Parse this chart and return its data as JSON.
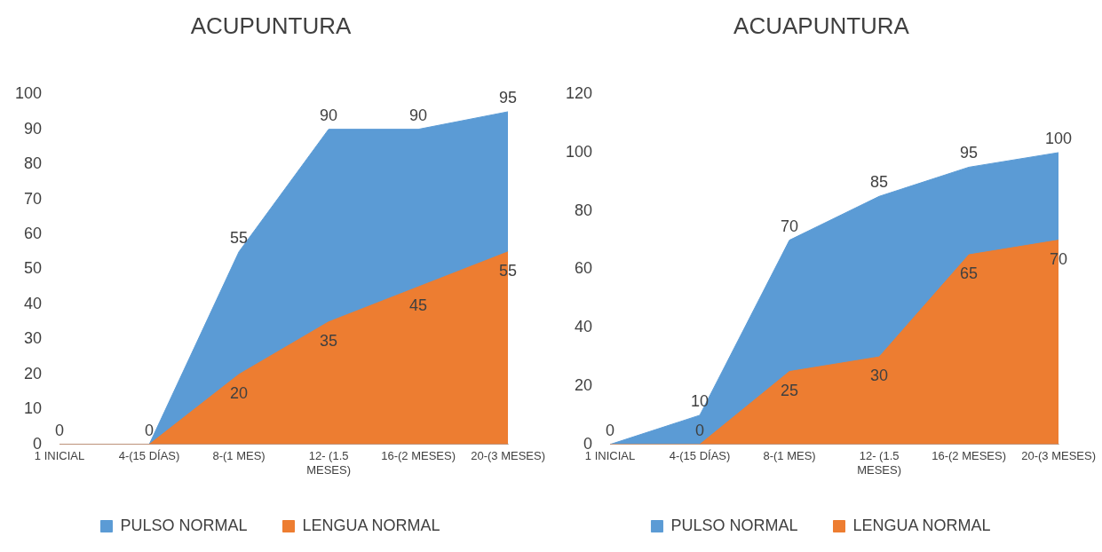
{
  "chart_data": [
    {
      "type": "area",
      "title": "ACUPUNTURA",
      "categories": [
        "1 INICIAL",
        "4-(15 DÍAS)",
        "8-(1 MES)",
        "12- (1.5 MESES)",
        "16-(2 MESES)",
        "20-(3 MESES)"
      ],
      "series": [
        {
          "name": "PULSO NORMAL",
          "color": "#5b9bd5",
          "values": [
            0,
            0,
            55,
            90,
            90,
            95
          ],
          "value_labels": [
            "0",
            "0",
            "55",
            "90",
            "90",
            "95"
          ]
        },
        {
          "name": "LENGUA NORMAL",
          "color": "#ed7d31",
          "values": [
            0,
            0,
            20,
            35,
            45,
            55
          ],
          "value_labels": [
            null,
            null,
            "20",
            "35",
            "45",
            "55"
          ]
        }
      ],
      "ylim": [
        0,
        100
      ],
      "yticks": [
        0,
        10,
        20,
        30,
        40,
        50,
        60,
        70,
        80,
        90,
        100
      ],
      "grid": false,
      "legend": "bottom"
    },
    {
      "type": "area",
      "title": "ACUAPUNTURA",
      "categories": [
        "1 INICIAL",
        "4-(15 DÍAS)",
        "8-(1 MES)",
        "12- (1.5 MESES)",
        "16-(2 MESES)",
        "20-(3 MESES)"
      ],
      "series": [
        {
          "name": "PULSO NORMAL",
          "color": "#5b9bd5",
          "values": [
            0,
            10,
            70,
            85,
            95,
            100
          ],
          "value_labels": [
            "0",
            "10",
            "70",
            "85",
            "95",
            "100"
          ]
        },
        {
          "name": "LENGUA NORMAL",
          "color": "#ed7d31",
          "values": [
            0,
            0,
            25,
            30,
            65,
            70
          ],
          "value_labels": [
            null,
            "0",
            "25",
            "30",
            "65",
            "70"
          ]
        }
      ],
      "ylim": [
        0,
        120
      ],
      "yticks": [
        0,
        20,
        40,
        60,
        80,
        100,
        120
      ],
      "grid": false,
      "legend": "bottom"
    }
  ]
}
